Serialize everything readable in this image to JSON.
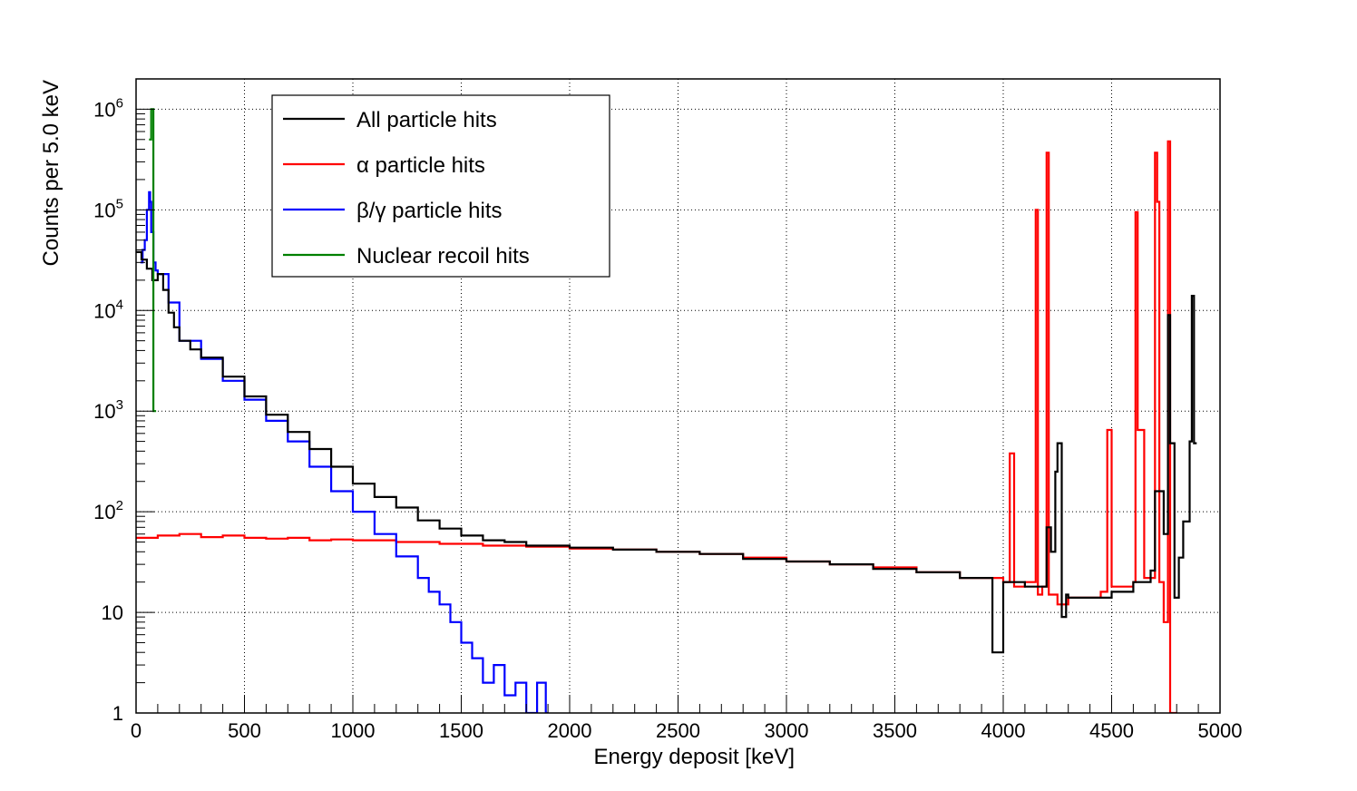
{
  "chart_data": {
    "type": "line",
    "title": "",
    "xlabel": "Energy deposit [keV]",
    "ylabel": "Counts per 5.0 keV",
    "xlim": [
      0,
      5000
    ],
    "ylim": [
      1,
      2000000
    ],
    "log_y": true,
    "grid": true,
    "legend_position": "top-left",
    "x_ticks": [
      {
        "value": 0,
        "label": "0"
      },
      {
        "value": 500,
        "label": "500"
      },
      {
        "value": 1000,
        "label": "1000"
      },
      {
        "value": 1500,
        "label": "1500"
      },
      {
        "value": 2000,
        "label": "2000"
      },
      {
        "value": 2500,
        "label": "2500"
      },
      {
        "value": 3000,
        "label": "3000"
      },
      {
        "value": 3500,
        "label": "3500"
      },
      {
        "value": 4000,
        "label": "4000"
      },
      {
        "value": 4500,
        "label": "4500"
      },
      {
        "value": 5000,
        "label": "5000"
      }
    ],
    "y_ticks": [
      {
        "value": 1,
        "base": "1",
        "exp": ""
      },
      {
        "value": 10,
        "base": "10",
        "exp": ""
      },
      {
        "value": 100,
        "base": "10",
        "exp": "2"
      },
      {
        "value": 1000,
        "base": "10",
        "exp": "3"
      },
      {
        "value": 10000,
        "base": "10",
        "exp": "4"
      },
      {
        "value": 100000,
        "base": "10",
        "exp": "5"
      },
      {
        "value": 1000000,
        "base": "10",
        "exp": "6"
      }
    ],
    "series": [
      {
        "name": "All particle hits",
        "color": "#000000",
        "x": [
          0,
          25,
          50,
          75,
          100,
          125,
          150,
          175,
          200,
          250,
          300,
          400,
          500,
          600,
          700,
          800,
          900,
          1000,
          1100,
          1200,
          1300,
          1400,
          1500,
          1600,
          1700,
          1800,
          2000,
          2200,
          2400,
          2600,
          2800,
          3000,
          3200,
          3400,
          3600,
          3800,
          3950,
          4000,
          4100,
          4150,
          4200,
          4220,
          4240,
          4250,
          4270,
          4290,
          4300,
          4400,
          4500,
          4600,
          4680,
          4700,
          4740,
          4760,
          4770,
          4790,
          4810,
          4830,
          4860,
          4870,
          4880
        ],
        "y": [
          38000,
          32000,
          26000,
          20000,
          23000,
          16000,
          9500,
          6800,
          5000,
          4100,
          3400,
          2200,
          1400,
          920,
          620,
          420,
          280,
          190,
          140,
          110,
          82,
          68,
          58,
          52,
          50,
          46,
          44,
          42,
          40,
          38,
          34,
          32,
          30,
          27,
          25,
          22,
          4,
          20,
          18,
          18,
          70,
          40,
          250,
          480,
          9,
          15,
          14,
          14,
          16,
          20,
          26,
          160,
          60,
          9000,
          480,
          14,
          35,
          80,
          500,
          14000,
          480
        ]
      },
      {
        "name": "α particle hits",
        "color": "#ff0000",
        "x": [
          0,
          100,
          200,
          300,
          400,
          500,
          600,
          700,
          800,
          900,
          1000,
          1200,
          1400,
          1600,
          1800,
          2000,
          2200,
          2400,
          2600,
          2800,
          3000,
          3200,
          3400,
          3600,
          3800,
          4000,
          4030,
          4050,
          4100,
          4150,
          4160,
          4180,
          4200,
          4210,
          4250,
          4300,
          4400,
          4450,
          4480,
          4500,
          4600,
          4610,
          4620,
          4650,
          4700,
          4710,
          4720,
          4740,
          4760,
          4770,
          4780,
          4790
        ],
        "y": [
          55,
          58,
          60,
          56,
          58,
          55,
          54,
          55,
          52,
          53,
          52,
          50,
          48,
          46,
          45,
          43,
          42,
          40,
          38,
          35,
          32,
          30,
          28,
          25,
          22,
          20,
          380,
          18,
          20,
          100000,
          15,
          18,
          370000,
          15,
          12,
          14,
          14,
          16,
          650,
          18,
          20,
          95000,
          650,
          22,
          370000,
          120000,
          20,
          8,
          480000,
          1,
          1,
          1
        ]
      },
      {
        "name": "β/γ particle hits",
        "color": "#0000ff",
        "x": [
          20,
          30,
          40,
          50,
          60,
          65,
          70,
          80,
          90,
          100,
          150,
          200,
          300,
          400,
          500,
          600,
          700,
          800,
          900,
          1000,
          1100,
          1200,
          1300,
          1350,
          1400,
          1450,
          1500,
          1550,
          1600,
          1650,
          1700,
          1750,
          1800,
          1850,
          1890
        ],
        "y": [
          30000,
          40000,
          50000,
          100000,
          150000,
          120000,
          60000,
          30000,
          25000,
          23000,
          12000,
          5000,
          3300,
          2000,
          1300,
          800,
          500,
          280,
          160,
          100,
          60,
          36,
          22,
          16,
          12,
          8,
          5,
          3.5,
          2,
          3,
          1.5,
          2,
          1,
          2,
          1
        ]
      },
      {
        "name": "Nuclear recoil hits",
        "color": "#008000",
        "x": [
          60,
          70,
          80
        ],
        "y": [
          500000,
          1000000,
          1000
        ]
      }
    ]
  }
}
